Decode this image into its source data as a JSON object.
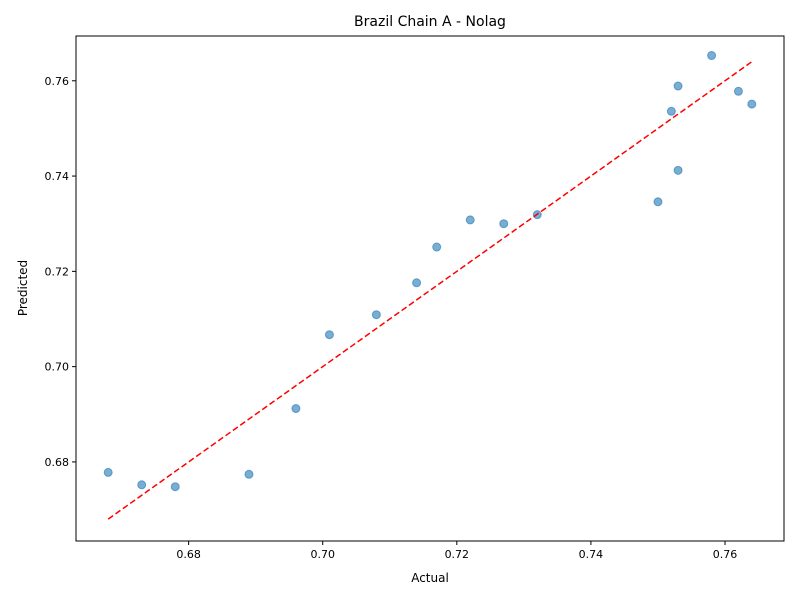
{
  "chart_data": {
    "type": "scatter",
    "title": "Brazil Chain A - Nolag",
    "xlabel": "Actual",
    "ylabel": "Predicted",
    "xlim": [
      0.6632,
      0.7688
    ],
    "ylim": [
      0.6634,
      0.7694
    ],
    "xticks": [
      0.68,
      0.7,
      0.72,
      0.74,
      0.76
    ],
    "xtick_labels": [
      "0.68",
      "0.70",
      "0.72",
      "0.74",
      "0.76"
    ],
    "yticks": [
      0.68,
      0.7,
      0.72,
      0.74,
      0.76
    ],
    "ytick_labels": [
      "0.68",
      "0.70",
      "0.72",
      "0.74",
      "0.76"
    ],
    "grid": false,
    "colors": {
      "points": "#1f77b4",
      "reference_line": "#ff0000"
    },
    "reference_line": {
      "style": "dashed",
      "x": [
        0.668,
        0.764
      ],
      "y": [
        0.668,
        0.764
      ]
    },
    "points": [
      {
        "x": 0.668,
        "y": 0.6778
      },
      {
        "x": 0.673,
        "y": 0.6752
      },
      {
        "x": 0.678,
        "y": 0.6748
      },
      {
        "x": 0.689,
        "y": 0.6774
      },
      {
        "x": 0.696,
        "y": 0.6912
      },
      {
        "x": 0.701,
        "y": 0.7067
      },
      {
        "x": 0.708,
        "y": 0.7109
      },
      {
        "x": 0.714,
        "y": 0.7176
      },
      {
        "x": 0.717,
        "y": 0.7251
      },
      {
        "x": 0.722,
        "y": 0.7308
      },
      {
        "x": 0.727,
        "y": 0.73
      },
      {
        "x": 0.732,
        "y": 0.7319
      },
      {
        "x": 0.75,
        "y": 0.7346
      },
      {
        "x": 0.753,
        "y": 0.7412
      },
      {
        "x": 0.752,
        "y": 0.7536
      },
      {
        "x": 0.753,
        "y": 0.7589
      },
      {
        "x": 0.758,
        "y": 0.7653
      },
      {
        "x": 0.762,
        "y": 0.7578
      },
      {
        "x": 0.764,
        "y": 0.7551
      }
    ]
  }
}
